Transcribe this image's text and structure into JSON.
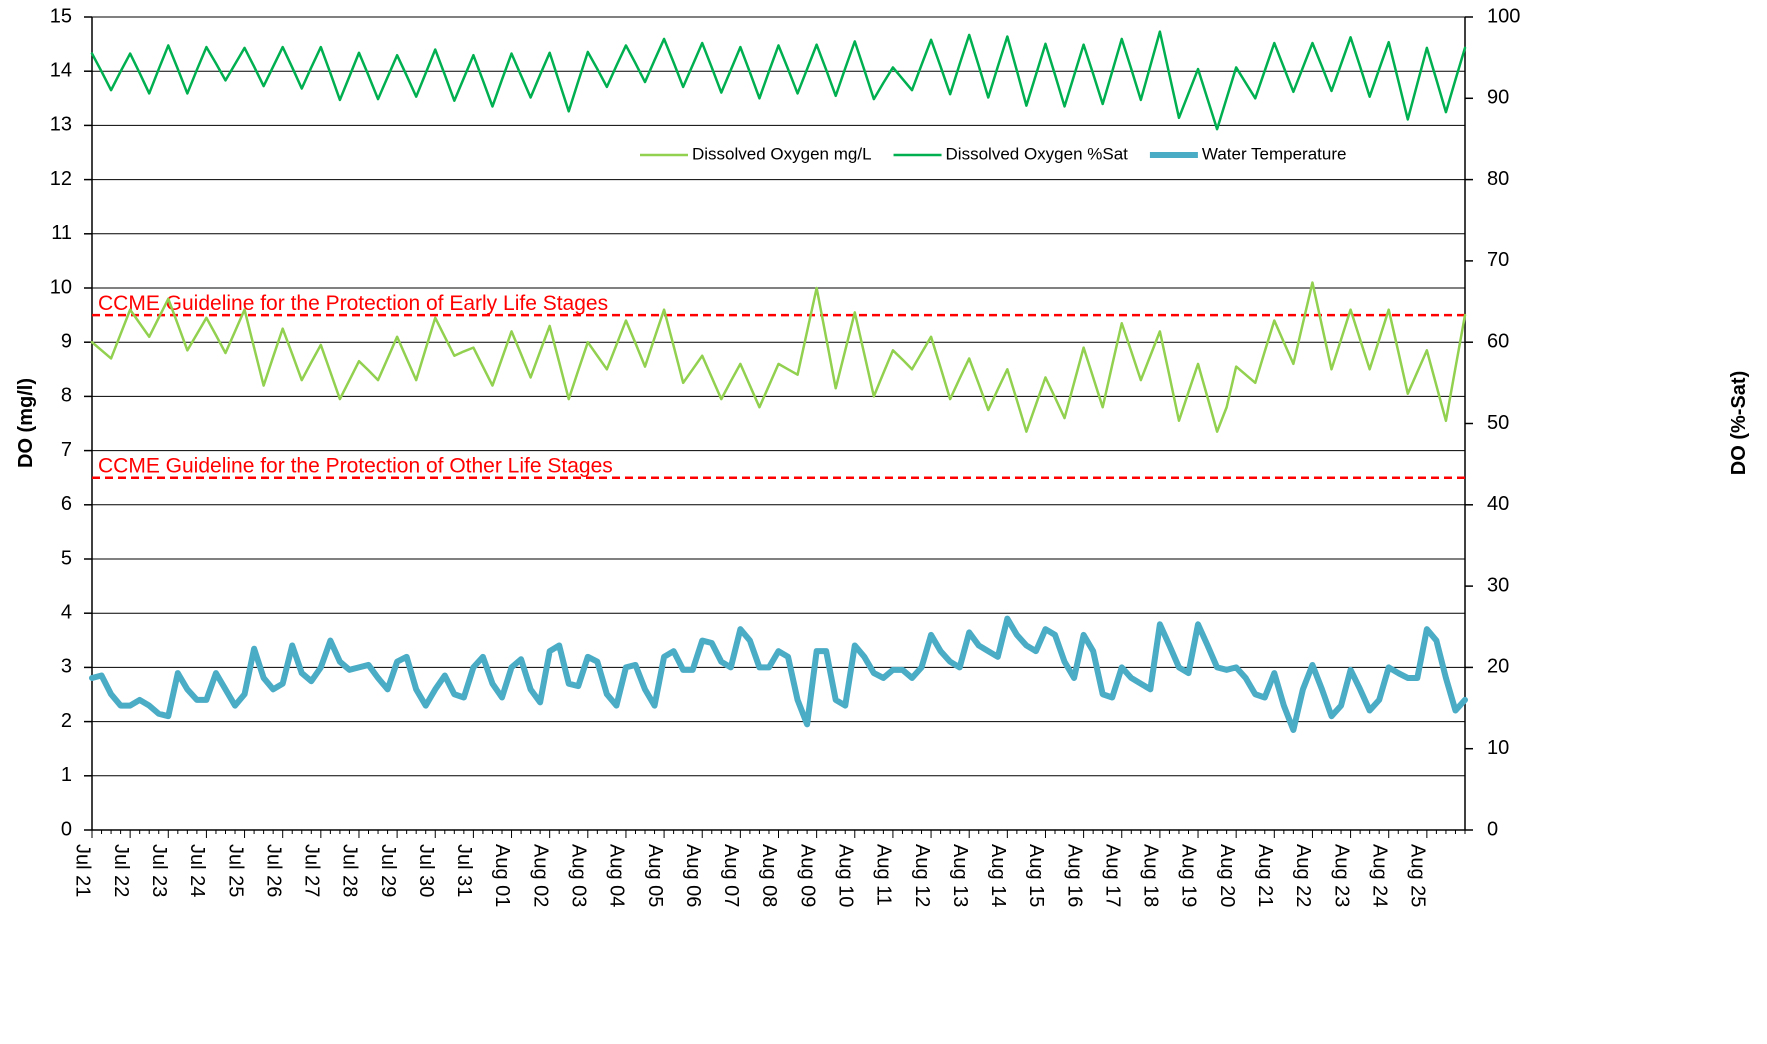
{
  "chart_data": {
    "type": "line",
    "y_label": "DO (mg/l)",
    "y2_label": "DO (%-Sat)",
    "categories": [
      "Jul 21",
      null,
      null,
      null,
      "Jul 22",
      null,
      null,
      null,
      "Jul 23",
      null,
      null,
      null,
      "Jul 24",
      null,
      null,
      null,
      "Jul 25",
      null,
      null,
      null,
      "Jul 26",
      null,
      null,
      null,
      "Jul 27",
      null,
      null,
      null,
      "Jul 28",
      null,
      null,
      null,
      "Jul 29",
      null,
      null,
      null,
      "Jul 30",
      null,
      null,
      null,
      "Jul 31",
      null,
      null,
      null,
      "Aug 01",
      null,
      null,
      null,
      "Aug 02",
      null,
      null,
      null,
      "Aug 03",
      null,
      null,
      null,
      "Aug 04",
      null,
      null,
      null,
      "Aug 05",
      null,
      null,
      null,
      "Aug 06",
      null,
      null,
      null,
      "Aug 07",
      null,
      null,
      null,
      "Aug 08",
      null,
      null,
      null,
      "Aug 09",
      null,
      null,
      null,
      "Aug 10",
      null,
      null,
      null,
      "Aug 11",
      null,
      null,
      null,
      "Aug 12",
      null,
      null,
      null,
      "Aug 13",
      null,
      null,
      null,
      "Aug 14",
      null,
      null,
      null,
      "Aug 15",
      null,
      null,
      null,
      "Aug 16",
      null,
      null,
      null,
      "Aug 17",
      null,
      null,
      null,
      "Aug 18",
      null,
      null,
      null,
      "Aug 19",
      null,
      null,
      null,
      "Aug 20",
      null,
      null,
      null,
      "Aug 21",
      null,
      null,
      null,
      "Aug 22",
      null,
      null,
      null,
      "Aug 23",
      null,
      null,
      null,
      "Aug 24",
      null,
      null,
      null,
      "Aug 25",
      null,
      null,
      null,
      null
    ],
    "series": [
      {
        "name": "Dissolved Oxygen mg/L",
        "color": "#92d050",
        "width": 2.5,
        "axis": "y",
        "values": [
          9.0,
          8.85,
          8.7,
          9.15,
          9.6,
          9.35,
          9.1,
          9.45,
          9.8,
          9.33,
          8.85,
          9.15,
          9.45,
          9.13,
          8.8,
          9.2,
          9.6,
          8.9,
          8.2,
          8.73,
          9.25,
          8.78,
          8.3,
          8.63,
          8.95,
          8.45,
          7.95,
          8.3,
          8.65,
          8.48,
          8.3,
          8.7,
          9.1,
          8.7,
          8.3,
          8.88,
          9.45,
          9.1,
          8.75,
          8.83,
          8.9,
          8.55,
          8.2,
          8.7,
          9.2,
          8.78,
          8.35,
          8.83,
          9.3,
          8.63,
          7.95,
          8.48,
          9.0,
          8.75,
          8.5,
          8.95,
          9.4,
          8.98,
          8.55,
          9.08,
          9.6,
          8.93,
          8.25,
          8.5,
          8.75,
          8.35,
          7.95,
          8.28,
          8.6,
          8.2,
          7.8,
          8.2,
          8.6,
          8.5,
          8.4,
          9.2,
          10.0,
          9.08,
          8.15,
          8.85,
          9.55,
          8.78,
          8.0,
          8.43,
          8.85,
          8.68,
          8.5,
          8.8,
          9.1,
          8.53,
          7.95,
          8.33,
          8.7,
          8.23,
          7.75,
          8.13,
          8.5,
          7.93,
          7.35,
          7.85,
          8.35,
          7.98,
          7.6,
          8.25,
          8.9,
          8.35,
          7.8,
          8.58,
          9.35,
          8.83,
          8.3,
          8.75,
          9.2,
          8.38,
          7.55,
          8.08,
          8.6,
          7.98,
          7.35,
          7.8,
          8.55,
          8.4,
          8.25,
          8.83,
          9.4,
          9.0,
          8.6,
          9.35,
          10.1,
          9.3,
          8.5,
          9.05,
          9.6,
          9.05,
          8.5,
          9.05,
          9.6,
          8.83,
          8.05,
          8.45,
          8.85,
          8.2,
          7.55,
          8.53,
          9.5
        ]
      },
      {
        "name": "Dissolved Oxygen %Sat",
        "color": "#00b050",
        "width": 2.5,
        "axis": "y2",
        "values": [
          95.5,
          93.3,
          91.0,
          93.3,
          95.5,
          93.1,
          90.6,
          93.6,
          96.5,
          93.6,
          90.6,
          93.5,
          96.3,
          94.3,
          92.2,
          94.2,
          96.2,
          93.9,
          91.5,
          93.9,
          96.3,
          93.8,
          91.2,
          93.8,
          96.3,
          93.1,
          89.8,
          92.7,
          95.6,
          92.8,
          89.9,
          92.6,
          95.3,
          92.8,
          90.2,
          93.1,
          96.0,
          92.9,
          89.7,
          92.5,
          95.3,
          92.2,
          89.0,
          92.3,
          95.5,
          92.8,
          90.1,
          92.9,
          95.6,
          92.0,
          88.4,
          92.1,
          95.7,
          93.6,
          91.4,
          94.0,
          96.5,
          94.3,
          92.0,
          94.7,
          97.3,
          94.4,
          91.4,
          94.1,
          96.8,
          93.8,
          90.7,
          93.5,
          96.3,
          93.2,
          90.0,
          93.3,
          96.5,
          93.6,
          90.6,
          93.6,
          96.6,
          93.5,
          90.3,
          93.7,
          97.0,
          93.5,
          89.9,
          91.9,
          93.8,
          92.4,
          91.0,
          94.1,
          97.2,
          93.9,
          90.5,
          94.2,
          97.8,
          94.0,
          90.1,
          93.9,
          97.6,
          93.4,
          89.1,
          92.9,
          96.7,
          92.9,
          89.0,
          92.8,
          96.6,
          93.0,
          89.3,
          93.3,
          97.3,
          93.6,
          89.8,
          94.0,
          98.2,
          92.9,
          87.6,
          90.6,
          93.6,
          89.9,
          86.2,
          90.0,
          93.8,
          91.9,
          90.0,
          93.4,
          96.8,
          93.8,
          90.8,
          93.8,
          96.8,
          93.9,
          90.9,
          94.2,
          97.5,
          93.9,
          90.2,
          93.6,
          96.9,
          92.2,
          87.4,
          91.8,
          96.2,
          92.3,
          88.3,
          92.3,
          96.2
        ]
      },
      {
        "name": "Water Temperature",
        "color": "#4bacc6",
        "width": 6,
        "axis": "y2",
        "values": [
          18.7,
          19.0,
          16.7,
          15.3,
          15.3,
          16.0,
          15.3,
          14.3,
          14.0,
          19.3,
          17.3,
          16.0,
          16.0,
          19.3,
          17.3,
          15.3,
          16.7,
          22.3,
          18.7,
          17.3,
          18.0,
          22.7,
          19.3,
          18.3,
          20.0,
          23.3,
          20.7,
          19.7,
          20.0,
          20.3,
          18.7,
          17.3,
          20.7,
          21.3,
          17.3,
          15.3,
          17.3,
          19.0,
          16.7,
          16.3,
          20.0,
          21.3,
          18.0,
          16.3,
          20.0,
          21.0,
          17.3,
          15.7,
          22.0,
          22.7,
          18.0,
          17.7,
          21.3,
          20.7,
          16.7,
          15.3,
          20.0,
          20.3,
          17.3,
          15.3,
          21.3,
          22.0,
          19.7,
          19.7,
          23.3,
          23.0,
          20.7,
          20.0,
          24.7,
          23.3,
          20.0,
          20.0,
          22.0,
          21.3,
          16.0,
          13.0,
          22.0,
          22.0,
          16.0,
          15.3,
          22.7,
          21.3,
          19.3,
          18.7,
          19.7,
          19.7,
          18.7,
          20.0,
          24.0,
          22.0,
          20.7,
          20.0,
          24.3,
          22.7,
          22.0,
          21.3,
          26.0,
          24.0,
          22.7,
          22.0,
          24.7,
          24.0,
          20.7,
          18.7,
          24.0,
          22.0,
          16.7,
          16.3,
          20.0,
          18.7,
          18.0,
          17.3,
          25.3,
          22.7,
          20.0,
          19.3,
          25.3,
          22.7,
          20.0,
          19.7,
          20.0,
          18.7,
          16.7,
          16.3,
          19.3,
          15.3,
          12.3,
          17.3,
          20.3,
          17.3,
          14.0,
          15.3,
          19.7,
          17.3,
          14.7,
          16.0,
          20.0,
          19.3,
          18.7,
          18.7,
          24.7,
          23.3,
          18.7,
          14.7,
          16.0
        ]
      }
    ],
    "reference_lines": [
      {
        "value": 9.5,
        "label": "CCME Guideline for the Protection of Early Life Stages"
      },
      {
        "value": 6.5,
        "label": "CCME Guideline for the Protection of Other Life Stages"
      }
    ],
    "reference_color": "#ff0000",
    "ylim": [
      0,
      15
    ],
    "yticks": [
      0,
      1,
      2,
      3,
      4,
      5,
      6,
      7,
      8,
      9,
      10,
      11,
      12,
      13,
      14,
      15
    ],
    "y2lim": [
      0,
      100
    ],
    "y2ticks": [
      0,
      10,
      20,
      30,
      40,
      50,
      60,
      70,
      80,
      90,
      100
    ],
    "grid": true,
    "legend": "upper right"
  }
}
